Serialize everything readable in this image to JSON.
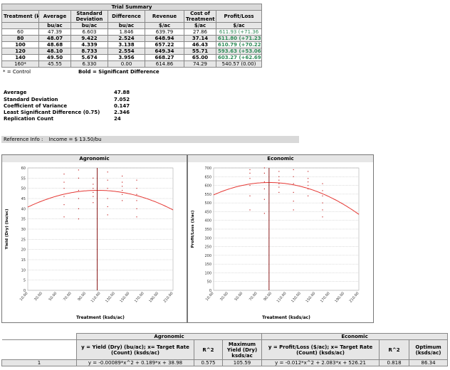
{
  "summary": {
    "title": "Trial Summary",
    "headers": [
      "Treatment (ksds/ac)",
      "Average",
      "Standard Deviation",
      "Difference",
      "Revenue",
      "Cost of Treatment",
      "Profit/Loss"
    ],
    "units": [
      "",
      "bu/ac",
      "bu/ac",
      "bu/ac",
      "$/ac",
      "$/ac",
      "$/ac"
    ],
    "rows": [
      {
        "treatment": "60",
        "average": "47.39",
        "std": "6.603",
        "diff": "1.846",
        "revenue": "639.79",
        "cost": "27.86",
        "profit": "611.93 (+71.36",
        "bold": false,
        "grey": false
      },
      {
        "treatment": "80",
        "average": "48.07",
        "std": "9.422",
        "diff": "2.524",
        "revenue": "648.94",
        "cost": "37.14",
        "profit": "611.80 (+71.23",
        "bold": true,
        "grey": true
      },
      {
        "treatment": "100",
        "average": "48.68",
        "std": "4.339",
        "diff": "3.138",
        "revenue": "657.22",
        "cost": "46.43",
        "profit": "610.79 (+70.22",
        "bold": true,
        "grey": false
      },
      {
        "treatment": "120",
        "average": "48.10",
        "std": "8.733",
        "diff": "2.554",
        "revenue": "649.34",
        "cost": "55.71",
        "profit": "593.63 (+53.06",
        "bold": true,
        "grey": true
      },
      {
        "treatment": "140",
        "average": "49.50",
        "std": "5.674",
        "diff": "3.956",
        "revenue": "668.27",
        "cost": "65.00",
        "profit": "603.27 (+62.69",
        "bold": true,
        "grey": false
      },
      {
        "treatment": "160*",
        "average": "45.55",
        "std": "6.330",
        "diff": "0.00",
        "revenue": "614.86",
        "cost": "74.29",
        "profit": "540.57 (0.00)",
        "bold": false,
        "grey": true
      }
    ],
    "footnote_control": "* = Control",
    "footnote_bold": "Bold = Significant Difference"
  },
  "stats": [
    {
      "label": "Average",
      "value": "47.88"
    },
    {
      "label": "Standard Deviation",
      "value": "7.052"
    },
    {
      "label": "Coefficient of Variance",
      "value": "0.147"
    },
    {
      "label": "Least Significant Difference (0.75)",
      "value": "2.346"
    },
    {
      "label": "Replication Count",
      "value": "24"
    }
  ],
  "reference": {
    "label": "Reference Info :",
    "income": "Income = $ 13.50/bu"
  },
  "agronomic_chart": {
    "title": "Agronomic",
    "ylabel": "Yield (Dry) (bu/ac)",
    "xlabel": "Treatment (ksds/ac)",
    "yticks": [
      "0",
      "5",
      "10",
      "15",
      "20",
      "25",
      "30",
      "35",
      "40",
      "45",
      "50",
      "55",
      "60"
    ],
    "xticks": [
      "10.00",
      "30.00",
      "50.00",
      "70.00",
      "90.00",
      "110.00",
      "130.00",
      "150.00",
      "170.00",
      "190.00",
      "210.00"
    ],
    "optimum_line": "105.59"
  },
  "economic_chart": {
    "title": "Economic",
    "ylabel": "Profit/Loss ($/ac)",
    "xlabel": "Treatment (ksds/ac)",
    "yticks": [
      "0",
      "50",
      "100",
      "150",
      "200",
      "250",
      "300",
      "350",
      "400",
      "450",
      "500",
      "550",
      "600",
      "650",
      "700"
    ],
    "xticks": [
      "10.00",
      "30.00",
      "50.00",
      "70.00",
      "90.00",
      "110.00",
      "130.00",
      "150.00",
      "170.00",
      "190.00",
      "210.00"
    ],
    "optimum_line": "86.34"
  },
  "chart_data": [
    {
      "type": "scatter",
      "title": "Agronomic",
      "xlabel": "Treatment (ksds/ac)",
      "ylabel": "Yield (Dry) (bu/ac)",
      "xlim": [
        10,
        210
      ],
      "ylim": [
        0,
        60
      ],
      "curve": {
        "a": -0.00089,
        "b": 0.189,
        "c": 38.98
      },
      "vline": 105.59,
      "points_x": [
        60,
        60,
        60,
        60,
        60,
        60,
        80,
        80,
        80,
        80,
        80,
        80,
        100,
        100,
        100,
        100,
        100,
        100,
        120,
        120,
        120,
        120,
        120,
        120,
        140,
        140,
        140,
        140,
        140,
        140,
        160,
        160,
        160,
        160,
        160,
        160
      ],
      "points_y": [
        36,
        42,
        46,
        50,
        53,
        57,
        35,
        40,
        45,
        49,
        55,
        59,
        43,
        46,
        48,
        50,
        52,
        55,
        37,
        41,
        45,
        50,
        54,
        58,
        44,
        47,
        49,
        51,
        53,
        56,
        36,
        40,
        44,
        47,
        50,
        54
      ]
    },
    {
      "type": "scatter",
      "title": "Economic",
      "xlabel": "Treatment (ksds/ac)",
      "ylabel": "Profit/Loss ($/ac)",
      "xlim": [
        10,
        210
      ],
      "ylim": [
        0,
        700
      ],
      "curve": {
        "a": -0.012,
        "b": 2.083,
        "c": 526.21
      },
      "vline": 86.34,
      "points_x": [
        60,
        60,
        60,
        60,
        60,
        60,
        80,
        80,
        80,
        80,
        80,
        80,
        100,
        100,
        100,
        100,
        100,
        100,
        120,
        120,
        120,
        120,
        120,
        120,
        140,
        140,
        140,
        140,
        140,
        140,
        160,
        160,
        160,
        160,
        160,
        160
      ],
      "points_y": [
        460,
        540,
        600,
        640,
        670,
        690,
        440,
        520,
        580,
        620,
        670,
        700,
        560,
        590,
        610,
        630,
        650,
        680,
        460,
        510,
        560,
        610,
        650,
        690,
        540,
        580,
        600,
        620,
        640,
        680,
        420,
        460,
        500,
        540,
        570,
        610
      ]
    }
  ],
  "regression": {
    "agronomic_header": "Agronomic",
    "economic_header": "Economic",
    "col_agro_eq": "y = Yield (Dry) (bu/ac); x= Target Rate (Count) (ksds/ac)",
    "col_r2": "R^2",
    "col_max": "Maximum Yield (Dry) ksds/ac",
    "col_econ_eq": "y = Profit/Loss ($/ac); x= Target Rate (Count) (ksds/ac)",
    "col_r2b": "R^2",
    "col_opt": "Optimum (ksds/ac)",
    "row": {
      "id": "1",
      "agro_eq": "y = -0.00089*x^2 + 0.189*x + 38.98",
      "r2": "0.575",
      "max": "105.59",
      "econ_eq": "y = -0.012*x^2 + 2.083*x + 526.21",
      "r2b": "0.818",
      "opt": "86.34"
    }
  },
  "colors": {
    "curve": "#e53935",
    "vline": "#8b1a1a",
    "points": "#c62828",
    "grid": "#bbbbbb",
    "positive": "#2e8b57",
    "header_bg": "#e6e6e6"
  }
}
